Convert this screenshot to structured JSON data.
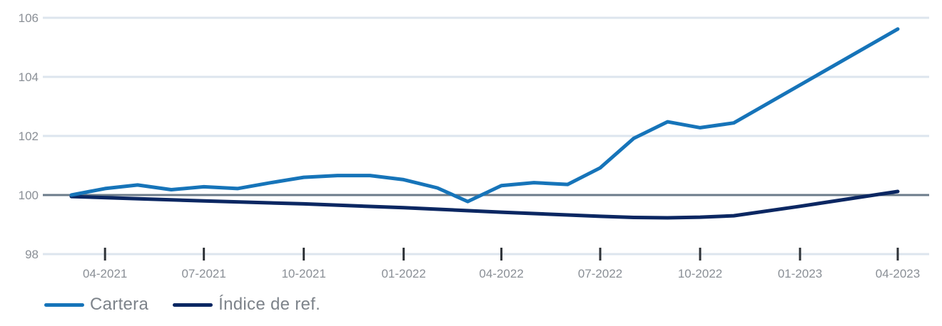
{
  "chart_data": {
    "type": "line",
    "title": "",
    "xlabel": "",
    "ylabel": "",
    "ylim": [
      98,
      106
    ],
    "yticks": [
      98,
      100,
      102,
      104,
      106
    ],
    "baseline": 100,
    "x_tick_labels": [
      "04-2021",
      "07-2021",
      "10-2021",
      "01-2022",
      "04-2022",
      "07-2022",
      "10-2022",
      "01-2023",
      "04-2023"
    ],
    "x_tick_dates": [
      "2021-04-01",
      "2021-07-01",
      "2021-10-01",
      "2022-01-01",
      "2022-04-01",
      "2022-07-01",
      "2022-10-01",
      "2023-01-01",
      "2023-04-01"
    ],
    "grid": true,
    "legend_position": "bottom-left",
    "series": [
      {
        "name": "Cartera",
        "color": "#1674b9",
        "points": [
          [
            "2021-03-01",
            100.0
          ],
          [
            "2021-04-01",
            100.22
          ],
          [
            "2021-05-01",
            100.34
          ],
          [
            "2021-06-01",
            100.18
          ],
          [
            "2021-07-01",
            100.28
          ],
          [
            "2021-08-01",
            100.22
          ],
          [
            "2021-09-01",
            100.42
          ],
          [
            "2021-10-01",
            100.6
          ],
          [
            "2021-11-01",
            100.66
          ],
          [
            "2021-12-01",
            100.66
          ],
          [
            "2022-01-01",
            100.52
          ],
          [
            "2022-02-01",
            100.24
          ],
          [
            "2022-03-01",
            99.78
          ],
          [
            "2022-04-01",
            100.32
          ],
          [
            "2022-05-01",
            100.42
          ],
          [
            "2022-06-01",
            100.36
          ],
          [
            "2022-07-01",
            100.92
          ],
          [
            "2022-08-01",
            101.92
          ],
          [
            "2022-09-01",
            102.48
          ],
          [
            "2022-10-01",
            102.28
          ],
          [
            "2022-11-01",
            102.44
          ],
          [
            "2023-04-01",
            105.62
          ]
        ]
      },
      {
        "name": "Índice de ref.",
        "color": "#0b2762",
        "points": [
          [
            "2021-03-01",
            99.95
          ],
          [
            "2021-07-01",
            99.8
          ],
          [
            "2021-10-01",
            99.7
          ],
          [
            "2022-01-01",
            99.57
          ],
          [
            "2022-04-01",
            99.42
          ],
          [
            "2022-07-01",
            99.28
          ],
          [
            "2022-08-01",
            99.24
          ],
          [
            "2022-09-01",
            99.23
          ],
          [
            "2022-10-01",
            99.25
          ],
          [
            "2022-11-01",
            99.3
          ],
          [
            "2023-01-01",
            99.62
          ],
          [
            "2023-04-01",
            100.12
          ]
        ]
      }
    ]
  }
}
